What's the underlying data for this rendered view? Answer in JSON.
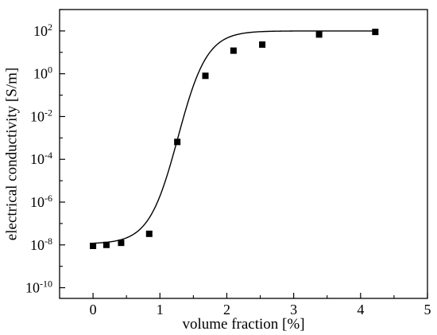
{
  "chart_data": {
    "type": "scatter",
    "title": "",
    "xlabel": "volume fraction [%]",
    "ylabel": "electrical conductivity [S/m]",
    "xlim": [
      -0.5,
      5
    ],
    "ylim_log10": [
      -10.5,
      3
    ],
    "y_scale": "log",
    "grid": false,
    "legend": "none",
    "x_ticks": [
      0,
      1,
      2,
      3,
      4,
      5
    ],
    "x_tick_labels": [
      "0",
      "1",
      "2",
      "3",
      "4",
      "5"
    ],
    "y_ticks": [
      {
        "exp": 2,
        "mantissa": "10",
        "sup": "2"
      },
      {
        "exp": 0,
        "mantissa": "10",
        "sup": "0"
      },
      {
        "exp": -2,
        "mantissa": "10",
        "sup": "-2"
      },
      {
        "exp": -4,
        "mantissa": "10",
        "sup": "-4"
      },
      {
        "exp": -6,
        "mantissa": "10",
        "sup": "-6"
      },
      {
        "exp": -8,
        "mantissa": "10",
        "sup": "-8"
      },
      {
        "exp": -10,
        "mantissa": "10",
        "sup": "-10"
      }
    ],
    "series": [
      {
        "marker": "square",
        "color": "#000000",
        "points": [
          {
            "x": 0.0,
            "y": 9e-09
          },
          {
            "x": 0.2,
            "y": 1e-08
          },
          {
            "x": 0.42,
            "y": 1.25e-08
          },
          {
            "x": 0.84,
            "y": 3.3e-08
          },
          {
            "x": 1.26,
            "y": 0.00065
          },
          {
            "x": 1.68,
            "y": 0.8
          },
          {
            "x": 2.1,
            "y": 12
          },
          {
            "x": 2.53,
            "y": 23
          },
          {
            "x": 3.38,
            "y": 68
          },
          {
            "x": 4.22,
            "y": 90
          }
        ]
      }
    ],
    "fit_curve": {
      "type": "sigmoid_log10",
      "color": "#000000",
      "low": -7.95,
      "high": 2.0,
      "x0": 1.27,
      "k": 4.6,
      "x_range": [
        0.0,
        4.22
      ]
    }
  }
}
